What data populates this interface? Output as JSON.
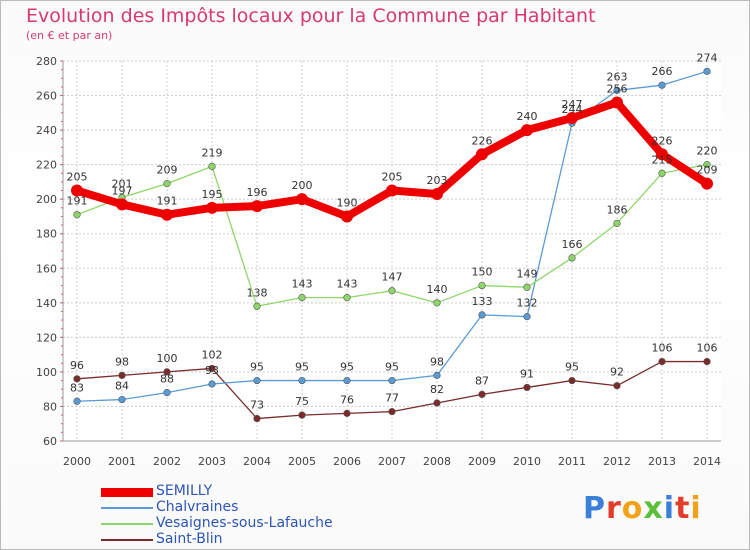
{
  "title": "Evolution des Impôts locaux pour la Commune par Habitant",
  "subtitle": "(en € et par an)",
  "logo": {
    "text": "Proxiti",
    "colors": [
      "#3a7fd8",
      "#e23c2b",
      "#f2a21a",
      "#5bbf3c",
      "#3a7fd8",
      "#e23c2b",
      "#f2a21a"
    ]
  },
  "chart_data": {
    "type": "line",
    "title": "Evolution des Impôts locaux pour la Commune par Habitant",
    "subtitle": "(en € et par an)",
    "xlabel": "",
    "ylabel": "",
    "x": [
      "2000",
      "2001",
      "2002",
      "2003",
      "2004",
      "2005",
      "2006",
      "2007",
      "2008",
      "2009",
      "2010",
      "2011",
      "2012",
      "2013",
      "2014"
    ],
    "ylim": [
      60,
      280
    ],
    "yticks": [
      "60",
      "80",
      "100",
      "120",
      "140",
      "160",
      "180",
      "200",
      "220",
      "240",
      "260",
      "280"
    ],
    "grid": true,
    "legend_position": "bottom-left",
    "series": [
      {
        "name": "SEMILLY",
        "color": "#ee0000",
        "values": [
          205,
          197,
          191,
          195,
          196,
          200,
          190,
          205,
          203,
          226,
          240,
          247,
          256,
          226,
          209
        ],
        "labels": [
          "205",
          "197",
          "191",
          "195",
          "196",
          "200",
          "190",
          "205",
          "203",
          "226",
          "240",
          "247",
          "256",
          "226",
          "209"
        ]
      },
      {
        "name": "Chalvraines",
        "color": "#5b9bd5",
        "values": [
          83,
          84,
          88,
          93,
          95,
          95,
          95,
          95,
          98,
          133,
          132,
          244,
          263,
          266,
          274
        ],
        "labels": [
          "83",
          "84",
          "88",
          "93",
          "95",
          "95",
          "95",
          "95",
          "98",
          "133",
          "132",
          "244",
          "263",
          "266",
          "274"
        ]
      },
      {
        "name": "Vesaignes-sous-Lafauche",
        "color": "#8fd66a",
        "values": [
          191,
          201,
          209,
          219,
          138,
          143,
          143,
          147,
          140,
          150,
          149,
          166,
          186,
          215,
          220
        ],
        "labels": [
          "191",
          "201",
          "209",
          "219",
          "138",
          "143",
          "143",
          "147",
          "140",
          "150",
          "149",
          "166",
          "186",
          "215",
          "220"
        ]
      },
      {
        "name": "Saint-Blin",
        "color": "#7a2b2b",
        "values": [
          96,
          98,
          100,
          102,
          73,
          75,
          76,
          77,
          82,
          87,
          91,
          95,
          92,
          106,
          106
        ],
        "labels": [
          "96",
          "98",
          "100",
          "102",
          "73",
          "75",
          "76",
          "77",
          "82",
          "87",
          "91",
          "95",
          "92",
          "106",
          "106"
        ]
      }
    ]
  }
}
